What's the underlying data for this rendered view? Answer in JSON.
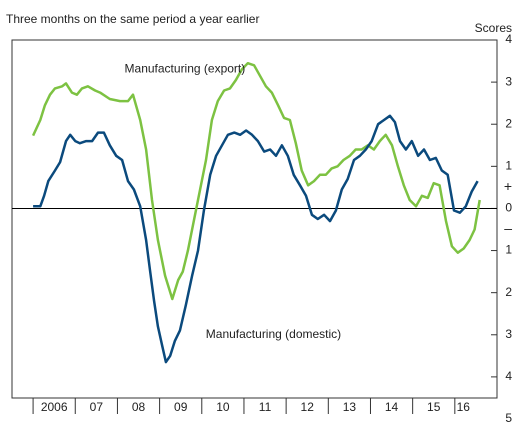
{
  "chart_data": {
    "type": "line",
    "title": "Three months on the same period a year earlier",
    "y_axis_label": "Scores",
    "y_sign_labels": {
      "positive": "+",
      "negative": "–"
    },
    "annotations": [
      {
        "text": "Manufacturing (export)",
        "x": 2009.6,
        "y": 3.3
      },
      {
        "text": "Manufacturing (domestic)",
        "x": 2011.7,
        "y": -3.0
      }
    ],
    "xlim": [
      2005.5,
      2017.0
    ],
    "xticks": [
      {
        "value": 2006,
        "label": "2006"
      },
      {
        "value": 2007,
        "label": "07"
      },
      {
        "value": 2008,
        "label": "08"
      },
      {
        "value": 2009,
        "label": "09"
      },
      {
        "value": 2010,
        "label": "10"
      },
      {
        "value": 2011,
        "label": "11"
      },
      {
        "value": 2012,
        "label": "12"
      },
      {
        "value": 2013,
        "label": "13"
      },
      {
        "value": 2014,
        "label": "14"
      },
      {
        "value": 2015,
        "label": "15"
      },
      {
        "value": 2016,
        "label": "16"
      }
    ],
    "ylim": [
      -5,
      4
    ],
    "yticks": [
      4,
      3,
      2,
      1,
      0,
      {
        "value": -1,
        "label": "1"
      },
      {
        "value": -2,
        "label": "2"
      },
      {
        "value": -3,
        "label": "3"
      },
      {
        "value": -4,
        "label": "4"
      },
      {
        "value": -5,
        "label": "5"
      }
    ],
    "series": [
      {
        "name": "Manufacturing (export)",
        "color": "#7dc242",
        "x": [
          2006.0,
          2006.17,
          2006.28,
          2006.4,
          2006.52,
          2006.69,
          2006.78,
          2006.92,
          2007.04,
          2007.16,
          2007.3,
          2007.47,
          2007.59,
          2007.82,
          2008.06,
          2008.25,
          2008.37,
          2008.54,
          2008.68,
          2008.82,
          2008.96,
          2009.13,
          2009.3,
          2009.44,
          2009.55,
          2009.67,
          2009.82,
          2009.96,
          2010.1,
          2010.24,
          2010.38,
          2010.53,
          2010.67,
          2010.81,
          2010.95,
          2011.09,
          2011.24,
          2011.38,
          2011.52,
          2011.66,
          2011.81,
          2011.95,
          2012.09,
          2012.23,
          2012.37,
          2012.52,
          2012.66,
          2012.8,
          2012.94,
          2013.08,
          2013.22,
          2013.36,
          2013.51,
          2013.65,
          2013.79,
          2013.94,
          2014.08,
          2014.22,
          2014.36,
          2014.51,
          2014.65,
          2014.79,
          2014.93,
          2015.08,
          2015.22,
          2015.36,
          2015.5,
          2015.64,
          2015.79,
          2015.93,
          2016.07,
          2016.21,
          2016.35,
          2016.47,
          2016.59
        ],
        "values": [
          1.73,
          2.1,
          2.45,
          2.7,
          2.85,
          2.9,
          2.97,
          2.75,
          2.7,
          2.85,
          2.9,
          2.8,
          2.75,
          2.6,
          2.55,
          2.55,
          2.7,
          2.1,
          1.4,
          0.2,
          -0.75,
          -1.6,
          -2.15,
          -1.7,
          -1.5,
          -1.0,
          -0.25,
          0.45,
          1.15,
          2.1,
          2.55,
          2.8,
          2.85,
          3.05,
          3.3,
          3.45,
          3.4,
          3.15,
          2.9,
          2.75,
          2.45,
          2.15,
          2.1,
          1.55,
          0.9,
          0.55,
          0.65,
          0.8,
          0.8,
          0.95,
          1.0,
          1.15,
          1.25,
          1.4,
          1.4,
          1.5,
          1.4,
          1.6,
          1.75,
          1.5,
          1.0,
          0.55,
          0.2,
          0.05,
          0.3,
          0.25,
          0.6,
          0.55,
          -0.3,
          -0.9,
          -1.05,
          -0.95,
          -0.75,
          -0.5,
          0.2
        ]
      },
      {
        "name": "Manufacturing (domestic)",
        "color": "#0b4a7d",
        "x": [
          2006.0,
          2006.17,
          2006.26,
          2006.36,
          2006.52,
          2006.64,
          2006.78,
          2006.88,
          2007.0,
          2007.11,
          2007.26,
          2007.4,
          2007.54,
          2007.68,
          2007.82,
          2007.97,
          2008.11,
          2008.25,
          2008.39,
          2008.54,
          2008.68,
          2008.77,
          2008.87,
          2008.96,
          2009.06,
          2009.15,
          2009.25,
          2009.36,
          2009.48,
          2009.62,
          2009.77,
          2009.91,
          2010.05,
          2010.2,
          2010.34,
          2010.48,
          2010.62,
          2010.77,
          2010.91,
          2011.05,
          2011.19,
          2011.33,
          2011.48,
          2011.62,
          2011.76,
          2011.9,
          2012.04,
          2012.18,
          2012.33,
          2012.47,
          2012.61,
          2012.75,
          2012.9,
          2013.04,
          2013.18,
          2013.32,
          2013.46,
          2013.61,
          2013.75,
          2013.89,
          2014.03,
          2014.18,
          2014.32,
          2014.46,
          2014.58,
          2014.7,
          2014.84,
          2014.98,
          2015.13,
          2015.27,
          2015.41,
          2015.55,
          2015.69,
          2015.83,
          2015.98,
          2016.12,
          2016.26,
          2016.4,
          2016.54
        ],
        "values": [
          0.05,
          0.05,
          0.3,
          0.65,
          0.9,
          1.1,
          1.6,
          1.75,
          1.6,
          1.55,
          1.6,
          1.6,
          1.8,
          1.8,
          1.5,
          1.25,
          1.15,
          0.65,
          0.45,
          0.05,
          -0.75,
          -1.45,
          -2.2,
          -2.8,
          -3.25,
          -3.65,
          -3.5,
          -3.15,
          -2.9,
          -2.3,
          -1.6,
          -1.0,
          -0.05,
          0.8,
          1.25,
          1.5,
          1.75,
          1.8,
          1.75,
          1.85,
          1.75,
          1.6,
          1.35,
          1.4,
          1.25,
          1.5,
          1.25,
          0.8,
          0.55,
          0.3,
          -0.15,
          -0.25,
          -0.15,
          -0.3,
          -0.05,
          0.45,
          0.7,
          1.15,
          1.25,
          1.4,
          1.6,
          2.0,
          2.1,
          2.2,
          2.05,
          1.6,
          1.4,
          1.6,
          1.25,
          1.4,
          1.15,
          1.2,
          0.9,
          0.8,
          -0.05,
          -0.1,
          0.05,
          0.4,
          0.65
        ]
      }
    ]
  }
}
